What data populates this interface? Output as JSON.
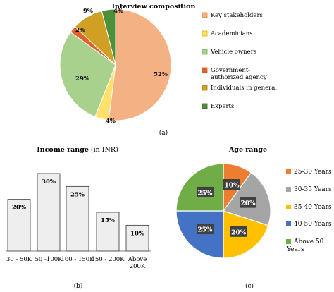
{
  "chart_data": [
    {
      "type": "pie",
      "title": "Interview composition",
      "panel_label": "(a)",
      "slices": [
        {
          "label": "Key stakeholders",
          "value": 52,
          "display": "52%",
          "color": "#f4b183",
          "stroke": "#ed7d31"
        },
        {
          "label": "Academicians",
          "value": 4,
          "display": "4%",
          "color": "#ffe06a",
          "stroke": "#e0b800"
        },
        {
          "label": "Vehicle owners",
          "value": 29,
          "display": "29%",
          "color": "#a9d18e",
          "stroke": "#70ad47"
        },
        {
          "label": "Government-authorized agency",
          "value": 2,
          "display": "2%",
          "color": "#e2602b",
          "stroke": "#c55a11"
        },
        {
          "label": "Individuals in general",
          "value": 9,
          "display": "9%",
          "color": "#cfa023",
          "stroke": "#a07d10"
        },
        {
          "label": "Experts",
          "value": 4,
          "display": "4%",
          "color": "#4e8f3a",
          "stroke": "#375f26"
        }
      ],
      "legend_placement": "right"
    },
    {
      "type": "bar",
      "title": "Income range",
      "title_unit": "(in INR)",
      "panel_label": "(b)",
      "categories": [
        "30 - 50K",
        "50 -100K",
        "100 - 150K",
        "150 - 200K",
        "Above 200K"
      ],
      "values": [
        20,
        30,
        25,
        15,
        10
      ],
      "display": [
        "20%",
        "30%",
        "25%",
        "15%",
        "10%"
      ],
      "bar_color": "#eeeeee",
      "ylim": [
        0,
        30
      ]
    },
    {
      "type": "pie",
      "title": "Age range",
      "panel_label": "(c)",
      "slices": [
        {
          "label": "25-30 Years",
          "value": 10,
          "display": "10%",
          "color": "#ed7d31"
        },
        {
          "label": "30-35 Years",
          "value": 20,
          "display": "20%",
          "color": "#a5a5a5"
        },
        {
          "label": "35-40 Years",
          "value": 20,
          "display": "20%",
          "color": "#ffc000"
        },
        {
          "label": "40-50 Years",
          "value": 25,
          "display": "25%",
          "color": "#4472c4"
        },
        {
          "label": "Above 50 Years",
          "value": 25,
          "display": "25%",
          "color": "#70ad47"
        }
      ],
      "legend_placement": "right"
    }
  ]
}
